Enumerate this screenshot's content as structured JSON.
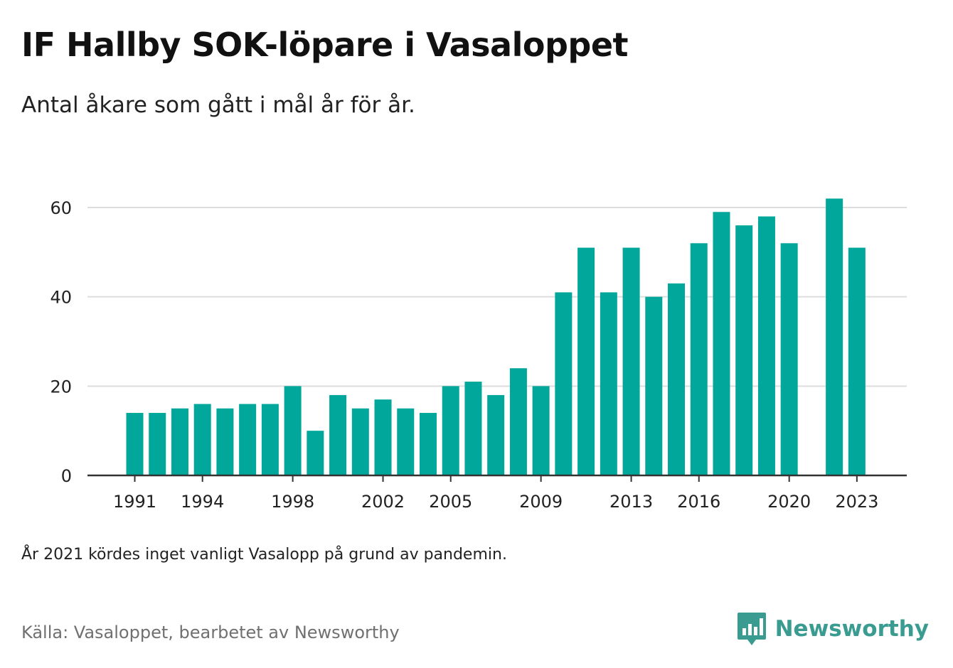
{
  "header": {
    "title": "IF Hallby SOK-löpare i Vasaloppet",
    "subtitle": "Antal åkare som gått i mål år för år."
  },
  "footer": {
    "note": "År 2021 kördes inget vanligt Vasalopp på grund av pandemin.",
    "source": "Källa: Vasaloppet, bearbetet av Newsworthy",
    "brand_name": "Newsworthy"
  },
  "colors": {
    "bar": "#00a79a",
    "brand": "#3a9c91",
    "grid": "#dddddd",
    "axis": "#333333"
  },
  "icons": {
    "brand_logo": "bar-chart-speech-bubble-icon"
  },
  "chart_data": {
    "type": "bar",
    "title": "IF Hallby SOK-löpare i Vasaloppet",
    "subtitle": "Antal åkare som gått i mål år för år.",
    "xlabel": "",
    "ylabel": "",
    "ylim": [
      0,
      62
    ],
    "yticks": [
      0,
      20,
      40,
      60
    ],
    "xticks": [
      1991,
      1994,
      1998,
      2002,
      2005,
      2009,
      2013,
      2016,
      2020,
      2023
    ],
    "grid": "horizontal",
    "legend": "none",
    "categories": [
      1991,
      1992,
      1993,
      1994,
      1995,
      1996,
      1997,
      1998,
      1999,
      2000,
      2001,
      2002,
      2003,
      2004,
      2005,
      2006,
      2007,
      2008,
      2009,
      2010,
      2011,
      2012,
      2013,
      2014,
      2015,
      2016,
      2017,
      2018,
      2019,
      2020,
      2021,
      2022,
      2023
    ],
    "values": [
      14,
      14,
      15,
      16,
      15,
      16,
      16,
      20,
      10,
      18,
      15,
      17,
      15,
      14,
      20,
      21,
      18,
      24,
      20,
      41,
      51,
      41,
      51,
      40,
      43,
      52,
      59,
      56,
      58,
      52,
      null,
      62,
      51
    ]
  }
}
